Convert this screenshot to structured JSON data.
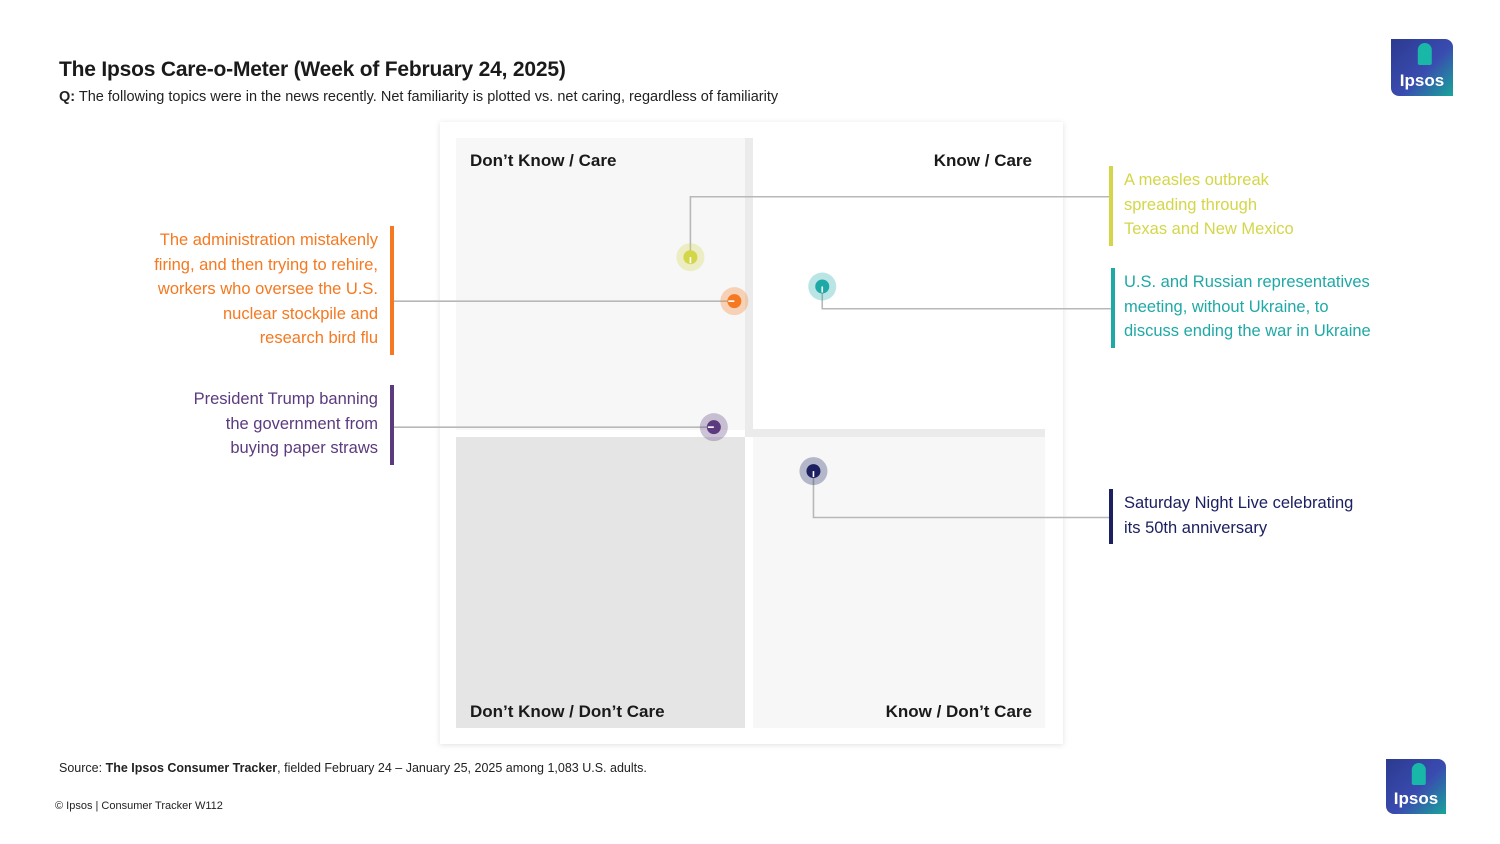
{
  "header": {
    "title": "The Ipsos Care-o-Meter (Week of February 24, 2025)",
    "q_label": "Q:",
    "question": "The following topics were in the news recently. Net familiarity is plotted vs. net caring, regardless of familiarity"
  },
  "logo": {
    "text": "Ipsos",
    "icon": "ipsos-logo-icon"
  },
  "chart_data": {
    "type": "scatter",
    "title": "The Ipsos Care-o-Meter (Week of February 24, 2025)",
    "xlabel": "",
    "ylabel": "",
    "quadrants": {
      "top_left": "Don’t Know / Care",
      "top_right": "Know / Care",
      "bottom_left": "Don’t Know / Don’t Care",
      "bottom_right": "Know / Don’t Care"
    },
    "points": [
      {
        "label": "A measles outbreak spreading through Texas and New Mexico",
        "lines": [
          "A measles outbreak",
          "spreading through",
          "Texas and New Mexico"
        ],
        "x": -0.2,
        "y": 0.6,
        "color": "#d4d64a",
        "side": "right"
      },
      {
        "label": "U.S. and Russian representatives meeting, without Ukraine, to discuss ending the war in Ukraine",
        "lines": [
          "U.S. and Russian representatives",
          "meeting, without Ukraine, to",
          "discuss ending the war in Ukraine"
        ],
        "x": 0.25,
        "y": 0.5,
        "color": "#1fa9a6",
        "side": "right"
      },
      {
        "label": "The administration mistakenly firing, and then trying to rehire, workers who oversee the U.S. nuclear stockpile and research bird flu",
        "lines": [
          "The administration mistakenly",
          "firing, and then trying to rehire,",
          "workers who oversee the U.S.",
          "nuclear stockpile and",
          "research bird flu"
        ],
        "x": -0.05,
        "y": 0.45,
        "color": "#f47920",
        "side": "left"
      },
      {
        "label": "President Trump banning the government from buying paper straws",
        "lines": [
          "President Trump banning",
          "the government from",
          "buying paper straws"
        ],
        "x": -0.12,
        "y": 0.02,
        "color": "#5b3a7e",
        "side": "left"
      },
      {
        "label": "Saturday Night Live celebrating its 50th anniversary",
        "lines": [
          "Saturday Night Live celebrating",
          "its 50th anniversary"
        ],
        "x": 0.22,
        "y": -0.13,
        "color": "#1c2060",
        "side": "right"
      }
    ]
  },
  "footer": {
    "source_prefix": "Source: ",
    "source_bold": "The Ipsos Consumer Tracker",
    "source_rest": ", fielded February 24 – January 25, 2025 among 1,083 U.S. adults.",
    "copyright": "© Ipsos | Consumer Tracker W112"
  }
}
